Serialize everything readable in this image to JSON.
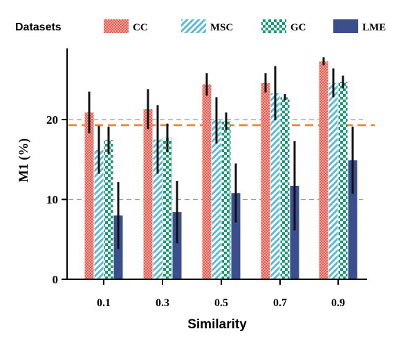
{
  "chart_data": {
    "type": "bar",
    "title": "",
    "xlabel": "Similarity",
    "ylabel": "M1 (%)",
    "categories": [
      "0.1",
      "0.3",
      "0.5",
      "0.7",
      "0.9"
    ],
    "ylim": [
      0,
      30
    ],
    "yticks": [
      "0",
      "10",
      "20"
    ],
    "legend_title": "Datasets",
    "legend_position": "top",
    "series": [
      {
        "name": "CC",
        "color": "#e8736a",
        "pattern": "crosshatch",
        "values": [
          20.9,
          21.3,
          24.4,
          24.6,
          27.3
        ],
        "errors": [
          2.6,
          2.5,
          1.4,
          1.2,
          0.5
        ]
      },
      {
        "name": "MSC",
        "color": "#6cc3dc",
        "pattern": "diagonal-stripes",
        "values": [
          16.2,
          17.5,
          19.9,
          23.3,
          24.6
        ],
        "errors": [
          3.0,
          4.3,
          2.9,
          3.4,
          1.8
        ]
      },
      {
        "name": "GC",
        "color": "#1a9b78",
        "pattern": "checkerboard",
        "values": [
          17.4,
          17.7,
          19.8,
          22.8,
          24.7
        ],
        "errors": [
          1.7,
          1.8,
          1.1,
          0.4,
          0.8
        ]
      },
      {
        "name": "LME",
        "color": "#3b4f8c",
        "pattern": "solid",
        "values": [
          8.0,
          8.4,
          10.8,
          11.7,
          14.9
        ],
        "errors": [
          4.2,
          3.9,
          3.7,
          5.6,
          4.2
        ]
      }
    ],
    "reference_lines": [
      {
        "value": 20.0,
        "style": "dashed",
        "color": "#999999"
      },
      {
        "value": 10.0,
        "style": "dashed",
        "color": "#999999"
      },
      {
        "value": 19.3,
        "style": "dashed",
        "color": "#f07d24"
      }
    ]
  }
}
